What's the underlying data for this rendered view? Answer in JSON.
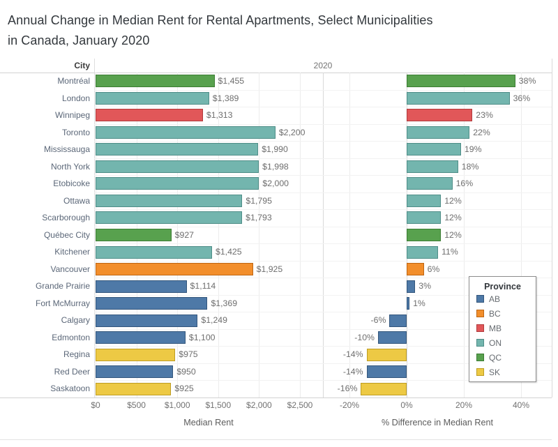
{
  "title": {
    "line1": "Annual Change in Median Rent for Rental Apartments, Select Municipalities",
    "line2": "in Canada, January 2020"
  },
  "headers": {
    "city": "City",
    "year": "2020"
  },
  "axes": {
    "left": {
      "title": "Median Rent",
      "ticks": [
        {
          "v": 0,
          "label": "$0"
        },
        {
          "v": 500,
          "label": "$500"
        },
        {
          "v": 1000,
          "label": "$1,000"
        },
        {
          "v": 1500,
          "label": "$1,500"
        },
        {
          "v": 2000,
          "label": "$2,000"
        },
        {
          "v": 2500,
          "label": "$2,500"
        }
      ]
    },
    "right": {
      "title": "% Difference in Median Rent",
      "ticks": [
        {
          "v": -20,
          "label": "-20%"
        },
        {
          "v": 0,
          "label": "0%"
        },
        {
          "v": 20,
          "label": "20%"
        },
        {
          "v": 40,
          "label": "40%"
        }
      ]
    }
  },
  "legend": {
    "title": "Province",
    "entries": [
      {
        "code": "AB",
        "color": "#4e79a7"
      },
      {
        "code": "BC",
        "color": "#f28e2b"
      },
      {
        "code": "MB",
        "color": "#e15759"
      },
      {
        "code": "ON",
        "color": "#73b5ae"
      },
      {
        "code": "QC",
        "color": "#58a14e"
      },
      {
        "code": "SK",
        "color": "#edc944"
      }
    ]
  },
  "palette": {
    "AB": {
      "fill": "#4e79a7",
      "border": "#33567c"
    },
    "BC": {
      "fill": "#f28e2b",
      "border": "#bc6513"
    },
    "MB": {
      "fill": "#e15759",
      "border": "#b03a3c"
    },
    "ON": {
      "fill": "#73b5ae",
      "border": "#4e8d87"
    },
    "QC": {
      "fill": "#58a14e",
      "border": "#3b7c33"
    },
    "SK": {
      "fill": "#edc944",
      "border": "#bd9c22"
    }
  },
  "chart_data": {
    "type": "bar",
    "orientation": "horizontal",
    "title": "Annual Change in Median Rent for Rental Apartments, Select Municipalities in Canada, January 2020",
    "color_by": "Province",
    "legend_position": "inside lower right",
    "grid": true,
    "categories": [
      "Montréal",
      "London",
      "Winnipeg",
      "Toronto",
      "Mississauga",
      "North York",
      "Etobicoke",
      "Ottawa",
      "Scarborough",
      "Québec City",
      "Kitchener",
      "Vancouver",
      "Grande Prairie",
      "Fort McMurray",
      "Calgary",
      "Edmonton",
      "Regina",
      "Red Deer",
      "Saskatoon"
    ],
    "panes": [
      {
        "xlabel": "Median Rent",
        "xlim": [
          0,
          2800
        ],
        "tick_values": [
          0,
          500,
          1000,
          1500,
          2000,
          2500
        ]
      },
      {
        "xlabel": "% Difference in Median Rent",
        "xlim": [
          -29,
          51
        ],
        "tick_values": [
          -20,
          0,
          20,
          40
        ]
      }
    ],
    "series": [
      {
        "name": "Median Rent",
        "values": [
          1455,
          1389,
          1313,
          2200,
          1990,
          1998,
          2000,
          1795,
          1793,
          927,
          1425,
          1925,
          1114,
          1369,
          1249,
          1100,
          975,
          950,
          925
        ]
      },
      {
        "name": "% Difference in Median Rent",
        "values": [
          38,
          36,
          23,
          22,
          19,
          18,
          16,
          12,
          12,
          12,
          11,
          6,
          3,
          1,
          -6,
          -10,
          -14,
          -14,
          -16
        ]
      }
    ],
    "rows": [
      {
        "city": "Montréal",
        "province": "QC",
        "rent": 1455,
        "rent_label": "$1,455",
        "pct": 38,
        "pct_label": "38%"
      },
      {
        "city": "London",
        "province": "ON",
        "rent": 1389,
        "rent_label": "$1,389",
        "pct": 36,
        "pct_label": "36%"
      },
      {
        "city": "Winnipeg",
        "province": "MB",
        "rent": 1313,
        "rent_label": "$1,313",
        "pct": 23,
        "pct_label": "23%"
      },
      {
        "city": "Toronto",
        "province": "ON",
        "rent": 2200,
        "rent_label": "$2,200",
        "pct": 22,
        "pct_label": "22%"
      },
      {
        "city": "Mississauga",
        "province": "ON",
        "rent": 1990,
        "rent_label": "$1,990",
        "pct": 19,
        "pct_label": "19%"
      },
      {
        "city": "North York",
        "province": "ON",
        "rent": 1998,
        "rent_label": "$1,998",
        "pct": 18,
        "pct_label": "18%"
      },
      {
        "city": "Etobicoke",
        "province": "ON",
        "rent": 2000,
        "rent_label": "$2,000",
        "pct": 16,
        "pct_label": "16%"
      },
      {
        "city": "Ottawa",
        "province": "ON",
        "rent": 1795,
        "rent_label": "$1,795",
        "pct": 12,
        "pct_label": "12%"
      },
      {
        "city": "Scarborough",
        "province": "ON",
        "rent": 1793,
        "rent_label": "$1,793",
        "pct": 12,
        "pct_label": "12%"
      },
      {
        "city": "Québec City",
        "province": "QC",
        "rent": 927,
        "rent_label": "$927",
        "pct": 12,
        "pct_label": "12%"
      },
      {
        "city": "Kitchener",
        "province": "ON",
        "rent": 1425,
        "rent_label": "$1,425",
        "pct": 11,
        "pct_label": "11%"
      },
      {
        "city": "Vancouver",
        "province": "BC",
        "rent": 1925,
        "rent_label": "$1,925",
        "pct": 6,
        "pct_label": "6%"
      },
      {
        "city": "Grande Prairie",
        "province": "AB",
        "rent": 1114,
        "rent_label": "$1,114",
        "pct": 3,
        "pct_label": "3%"
      },
      {
        "city": "Fort McMurray",
        "province": "AB",
        "rent": 1369,
        "rent_label": "$1,369",
        "pct": 1,
        "pct_label": "1%"
      },
      {
        "city": "Calgary",
        "province": "AB",
        "rent": 1249,
        "rent_label": "$1,249",
        "pct": -6,
        "pct_label": "-6%"
      },
      {
        "city": "Edmonton",
        "province": "AB",
        "rent": 1100,
        "rent_label": "$1,100",
        "pct": -10,
        "pct_label": "-10%"
      },
      {
        "city": "Regina",
        "province": "SK",
        "rent": 975,
        "rent_label": "$975",
        "pct": -14,
        "pct_label": "-14%"
      },
      {
        "city": "Red Deer",
        "province": "AB",
        "rent": 950,
        "rent_label": "$950",
        "pct": -14,
        "pct_label": "-14%"
      },
      {
        "city": "Saskatoon",
        "province": "SK",
        "rent": 925,
        "rent_label": "$925",
        "pct": -16,
        "pct_label": "-16%"
      }
    ]
  }
}
